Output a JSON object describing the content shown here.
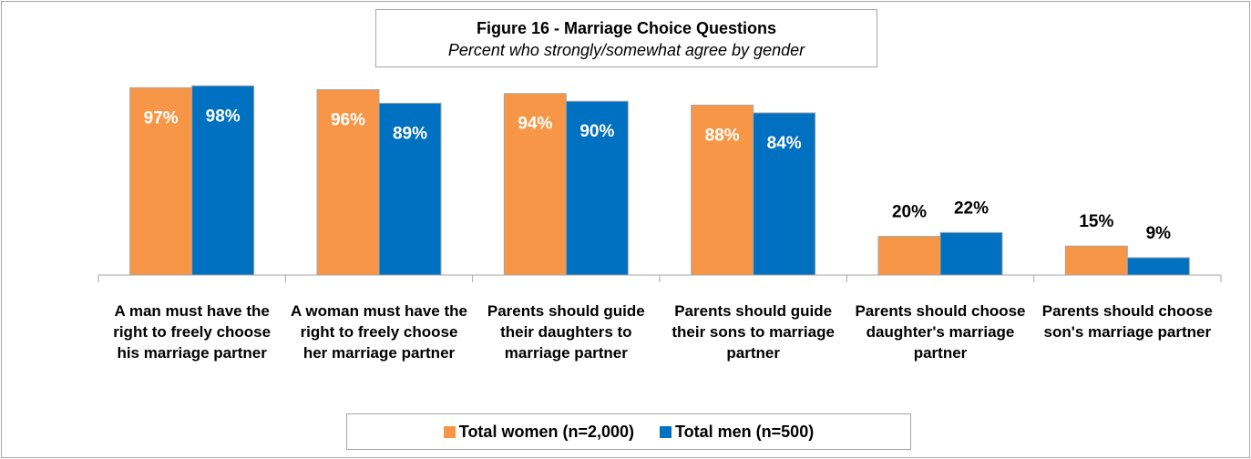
{
  "chart_data": {
    "type": "bar",
    "title": "Figure 16 - Marriage Choice Questions",
    "subtitle": "Percent who strongly/somewhat agree by gender",
    "categories": [
      "A man must have the right to freely choose his marriage partner",
      "A woman must have the right to freely choose her marriage partner",
      "Parents should guide their daughters to marriage partner",
      "Parents should guide their sons to marriage partner",
      "Parents should choose daughter's marriage partner",
      "Parents should choose son's marriage partner"
    ],
    "series": [
      {
        "name": "Total women (n=2,000)",
        "color": "#f79646",
        "values": [
          97,
          96,
          94,
          88,
          20,
          15
        ],
        "value_labels": [
          "97%",
          "96%",
          "94%",
          "88%",
          "20%",
          "15%"
        ]
      },
      {
        "name": "Total men (n=500)",
        "color": "#0070c0",
        "values": [
          98,
          89,
          90,
          84,
          22,
          9
        ],
        "value_labels": [
          "98%",
          "89%",
          "90%",
          "84%",
          "22%",
          "9%"
        ]
      }
    ]
  }
}
